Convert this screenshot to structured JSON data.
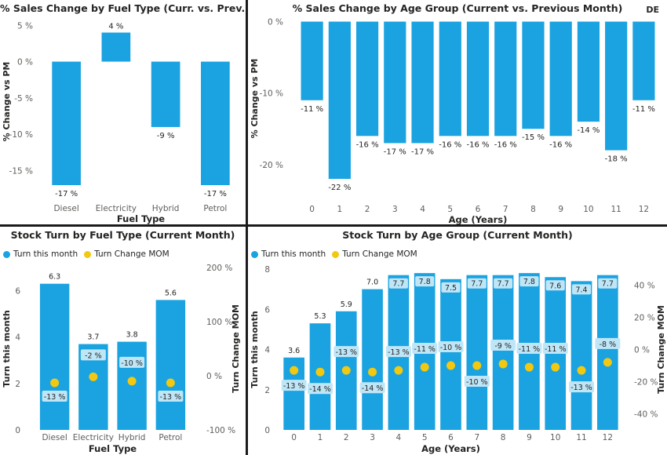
{
  "colors": {
    "bar": "#1aa3e0",
    "dot": "#f2c811",
    "label_bg": "#bfe6f7",
    "text": "#252423",
    "axis": "#605e5c"
  },
  "chart_data": [
    {
      "type": "bar",
      "title": "% Sales Change by Fuel Type (Curr. vs. Prev. Month)",
      "xlabel": "Fuel Type",
      "ylabel": "% Change vs PM",
      "categories": [
        "Diesel",
        "Electricity",
        "Hybrid",
        "Petrol"
      ],
      "values": [
        -17,
        4,
        -9,
        -17
      ],
      "data_labels": [
        "-17 %",
        "4 %",
        "-9 %",
        "-17 %"
      ],
      "ylim": [
        -17,
        6
      ],
      "y_ticks": [
        5,
        0,
        -5,
        -10,
        -15
      ],
      "y_tick_labels": [
        "5 %",
        "0 %",
        "-5 %",
        "-10 %",
        "-15 %"
      ]
    },
    {
      "type": "bar",
      "title": "% Sales Change by Age Group (Current vs. Previous Month)",
      "corner_tag": "DE",
      "xlabel": "Age (Years)",
      "ylabel": "% Change vs PM",
      "categories": [
        "0",
        "1",
        "2",
        "3",
        "4",
        "5",
        "6",
        "7",
        "8",
        "9",
        "10",
        "11",
        "12"
      ],
      "values": [
        -11,
        -22,
        -16,
        -17,
        -17,
        -16,
        -16,
        -16,
        -15,
        -16,
        -14,
        -18,
        -11
      ],
      "data_labels": [
        "-11 %",
        "-22 %",
        "-16 %",
        "-17 %",
        "-17 %",
        "-16 %",
        "-16 %",
        "-16 %",
        "-15 %",
        "-16 %",
        "-14 %",
        "-18 %",
        "-11 %"
      ],
      "ylim": [
        -22,
        0.5
      ],
      "y_ticks": [
        0,
        -10,
        -20
      ],
      "y_tick_labels": [
        "0 %",
        "-10 %",
        "-20 %"
      ]
    },
    {
      "type": "bar",
      "title": "Stock Turn by Fuel Type (Current Month)",
      "xlabel": "Fuel Type",
      "ylabel": "Turn this month",
      "y2label": "Turn Change MOM",
      "legend": [
        "Turn this month",
        "Turn Change MOM"
      ],
      "categories": [
        "Diesel",
        "Electricity",
        "Hybrid",
        "Petrol"
      ],
      "series": [
        {
          "name": "Turn this month",
          "values": [
            6.3,
            3.7,
            3.8,
            5.6
          ],
          "data_labels": [
            "6.3",
            "3.7",
            "3.8",
            "5.6"
          ]
        },
        {
          "name": "Turn Change MOM",
          "values": [
            -13,
            -2,
            -10,
            -13
          ],
          "data_labels": [
            "-13 %",
            "-2 %",
            "-10 %",
            "-13 %"
          ]
        }
      ],
      "ylim": [
        0,
        7
      ],
      "y_ticks": [
        0,
        2,
        4,
        6
      ],
      "y_tick_labels": [
        "0",
        "2",
        "4",
        "6"
      ],
      "y2lim": [
        -100,
        200
      ],
      "y2_ticks": [
        200,
        100,
        0,
        -100
      ],
      "y2_tick_labels": [
        "200 %",
        "100 %",
        "0 %",
        "-100 %"
      ]
    },
    {
      "type": "bar",
      "title": "Stock Turn by Age Group (Current Month)",
      "xlabel": "Age (Years)",
      "ylabel": "Turn this month",
      "y2label": "Turn Change MOM",
      "legend": [
        "Turn this month",
        "Turn Change MOM"
      ],
      "categories": [
        "0",
        "1",
        "2",
        "3",
        "4",
        "5",
        "6",
        "7",
        "8",
        "9",
        "10",
        "11",
        "12"
      ],
      "series": [
        {
          "name": "Turn this month",
          "values": [
            3.6,
            5.3,
            5.9,
            7.0,
            7.7,
            7.8,
            7.5,
            7.7,
            7.7,
            7.8,
            7.6,
            7.4,
            7.7
          ],
          "data_labels": [
            "3.6",
            "5.3",
            "5.9",
            "7.0",
            "7.7",
            "7.8",
            "7.5",
            "7.7",
            "7.7",
            "7.8",
            "7.6",
            "7.4",
            "7.7"
          ]
        },
        {
          "name": "Turn Change MOM",
          "values": [
            -13,
            -14,
            -13,
            -14,
            -13,
            -11,
            -10,
            -10,
            -9,
            -11,
            -11,
            -13,
            -8
          ],
          "data_labels": [
            "-13 %",
            "-14 %",
            "-13 %",
            "-14 %",
            "-13 %",
            "-11 %",
            "-10 %",
            "-10 %",
            "-9 %",
            "-11 %",
            "-11 %",
            "-13 %",
            "-8 %"
          ]
        }
      ],
      "ylim": [
        0,
        8
      ],
      "y_ticks": [
        0,
        2,
        4,
        6,
        8
      ],
      "y_tick_labels": [
        "0",
        "2",
        "4",
        "6",
        "8"
      ],
      "y2lim": [
        -50,
        50
      ],
      "y2_ticks": [
        40,
        20,
        0,
        -20,
        -40
      ],
      "y2_tick_labels": [
        "40 %",
        "20 %",
        "0 %",
        "-20 %",
        "-40 %"
      ]
    }
  ]
}
